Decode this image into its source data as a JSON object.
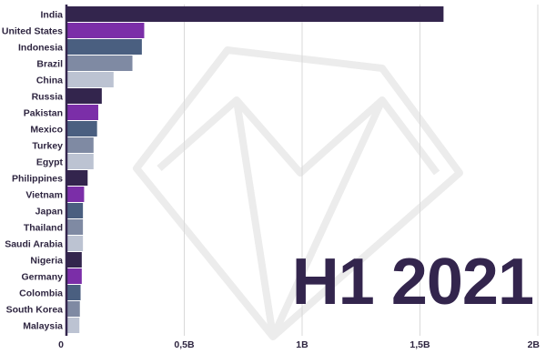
{
  "chart_data": {
    "type": "bar",
    "orientation": "horizontal",
    "categories": [
      "India",
      "United States",
      "Indonesia",
      "Brazil",
      "China",
      "Russia",
      "Pakistan",
      "Mexico",
      "Turkey",
      "Egypt",
      "Philippines",
      "Vietnam",
      "Japan",
      "Thailand",
      "Saudi Arabia",
      "Nigeria",
      "Germany",
      "Colombia",
      "South Korea",
      "Malaysia"
    ],
    "values": [
      1600000000,
      330000000,
      320000000,
      280000000,
      200000000,
      150000000,
      135000000,
      130000000,
      115000000,
      115000000,
      90000000,
      75000000,
      70000000,
      70000000,
      70000000,
      65000000,
      65000000,
      60000000,
      57000000,
      55000000
    ],
    "bar_colors": [
      "#33254d",
      "#7b2ea8",
      "#4a5f80",
      "#7f8aa3",
      "#bcc3d2",
      "#33254d",
      "#7b2ea8",
      "#4a5f80",
      "#7f8aa3",
      "#bcc3d2",
      "#33254d",
      "#7b2ea8",
      "#4a5f80",
      "#7f8aa3",
      "#bcc3d2",
      "#33254d",
      "#7b2ea8",
      "#4a5f80",
      "#7f8aa3",
      "#bcc3d2"
    ],
    "xlim": [
      0,
      2000000000
    ],
    "xticks": [
      {
        "value": 0,
        "label": "0"
      },
      {
        "value": 500000000,
        "label": "0,5B"
      },
      {
        "value": 1000000000,
        "label": "1B"
      },
      {
        "value": 1500000000,
        "label": "1,5B"
      },
      {
        "value": 2000000000,
        "label": "2B"
      }
    ],
    "grid": true,
    "period_label": "H1 2021"
  }
}
